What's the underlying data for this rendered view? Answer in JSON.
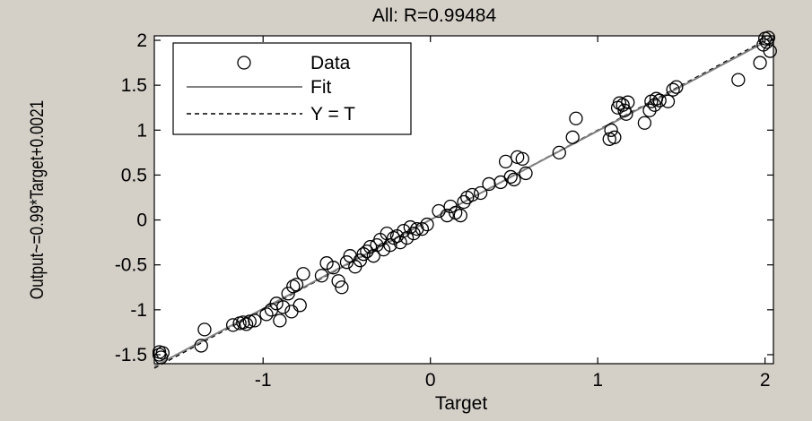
{
  "figure": {
    "background": "#d4d0c8",
    "axes_background": "#ffffff"
  },
  "chart_data": {
    "type": "scatter",
    "title": "All: R=0.99484",
    "xlabel": "Target",
    "ylabel": "Output~=0.99*Target+0.0021",
    "xlim": [
      -1.65,
      2.05
    ],
    "ylim": [
      -1.6,
      2.05
    ],
    "xticks": [
      -1,
      0,
      1,
      2
    ],
    "xtick_labels": [
      "-1",
      "0",
      "1",
      "2"
    ],
    "yticks": [
      -1.5,
      -1,
      -0.5,
      0,
      0.5,
      1,
      1.5,
      2
    ],
    "ytick_labels": [
      "-1.5",
      "-1",
      "-0.5",
      "0",
      "0.5",
      "1",
      "1.5",
      "2"
    ],
    "grid": false,
    "legend": {
      "placement": "top-left",
      "entries": [
        {
          "label": "Data",
          "style": "circle-marker"
        },
        {
          "label": "Fit",
          "style": "solid-line",
          "color": "#808080"
        },
        {
          "label": "Y = T",
          "style": "dashed-line",
          "color": "#000000"
        }
      ]
    },
    "fit": {
      "slope": 0.99,
      "intercept": 0.0021
    },
    "series": [
      {
        "name": "Data",
        "marker": "circle",
        "points": [
          [
            -1.62,
            -1.47
          ],
          [
            -1.62,
            -1.5
          ],
          [
            -1.61,
            -1.53
          ],
          [
            -1.6,
            -1.48
          ],
          [
            -1.37,
            -1.4
          ],
          [
            -1.35,
            -1.22
          ],
          [
            -1.18,
            -1.17
          ],
          [
            -1.14,
            -1.15
          ],
          [
            -1.12,
            -1.14
          ],
          [
            -1.1,
            -1.16
          ],
          [
            -1.08,
            -1.13
          ],
          [
            -1.05,
            -1.12
          ],
          [
            -0.98,
            -1.05
          ],
          [
            -0.95,
            -1.0
          ],
          [
            -0.92,
            -0.93
          ],
          [
            -0.9,
            -1.12
          ],
          [
            -0.88,
            -0.97
          ],
          [
            -0.85,
            -0.82
          ],
          [
            -0.83,
            -1.02
          ],
          [
            -0.82,
            -0.74
          ],
          [
            -0.8,
            -0.72
          ],
          [
            -0.78,
            -0.95
          ],
          [
            -0.76,
            -0.6
          ],
          [
            -0.65,
            -0.62
          ],
          [
            -0.62,
            -0.48
          ],
          [
            -0.58,
            -0.53
          ],
          [
            -0.55,
            -0.68
          ],
          [
            -0.53,
            -0.75
          ],
          [
            -0.5,
            -0.47
          ],
          [
            -0.48,
            -0.4
          ],
          [
            -0.45,
            -0.52
          ],
          [
            -0.42,
            -0.45
          ],
          [
            -0.4,
            -0.38
          ],
          [
            -0.38,
            -0.35
          ],
          [
            -0.36,
            -0.3
          ],
          [
            -0.34,
            -0.4
          ],
          [
            -0.32,
            -0.28
          ],
          [
            -0.3,
            -0.22
          ],
          [
            -0.28,
            -0.33
          ],
          [
            -0.26,
            -0.15
          ],
          [
            -0.24,
            -0.28
          ],
          [
            -0.22,
            -0.2
          ],
          [
            -0.2,
            -0.18
          ],
          [
            -0.18,
            -0.25
          ],
          [
            -0.16,
            -0.12
          ],
          [
            -0.14,
            -0.2
          ],
          [
            -0.12,
            -0.08
          ],
          [
            -0.1,
            -0.15
          ],
          [
            -0.08,
            -0.1
          ],
          [
            -0.05,
            -0.1
          ],
          [
            -0.02,
            -0.05
          ],
          [
            0.05,
            0.1
          ],
          [
            0.1,
            0.05
          ],
          [
            0.12,
            0.15
          ],
          [
            0.15,
            0.08
          ],
          [
            0.18,
            0.05
          ],
          [
            0.2,
            0.2
          ],
          [
            0.22,
            0.25
          ],
          [
            0.25,
            0.28
          ],
          [
            0.3,
            0.3
          ],
          [
            0.35,
            0.4
          ],
          [
            0.42,
            0.42
          ],
          [
            0.45,
            0.65
          ],
          [
            0.48,
            0.48
          ],
          [
            0.5,
            0.45
          ],
          [
            0.52,
            0.7
          ],
          [
            0.55,
            0.68
          ],
          [
            0.57,
            0.52
          ],
          [
            0.77,
            0.75
          ],
          [
            0.85,
            0.92
          ],
          [
            0.87,
            1.13
          ],
          [
            1.07,
            0.9
          ],
          [
            1.08,
            1.0
          ],
          [
            1.1,
            0.92
          ],
          [
            1.12,
            1.25
          ],
          [
            1.13,
            1.3
          ],
          [
            1.15,
            1.28
          ],
          [
            1.16,
            1.22
          ],
          [
            1.17,
            1.18
          ],
          [
            1.18,
            1.31
          ],
          [
            1.28,
            1.08
          ],
          [
            1.31,
            1.22
          ],
          [
            1.32,
            1.32
          ],
          [
            1.34,
            1.28
          ],
          [
            1.35,
            1.35
          ],
          [
            1.37,
            1.33
          ],
          [
            1.42,
            1.32
          ],
          [
            1.45,
            1.45
          ],
          [
            1.47,
            1.48
          ],
          [
            1.84,
            1.56
          ],
          [
            1.97,
            1.75
          ],
          [
            1.99,
            1.95
          ],
          [
            2.0,
            2.02
          ],
          [
            2.01,
            1.98
          ],
          [
            2.02,
            2.03
          ],
          [
            2.03,
            1.88
          ]
        ]
      }
    ]
  }
}
